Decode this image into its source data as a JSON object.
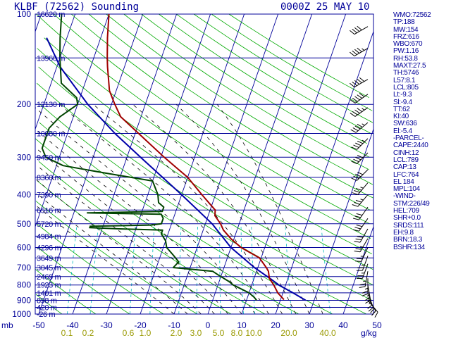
{
  "title": {
    "left": "KLBF (72562) Sounding",
    "right": "0000Z 25 MAY 10"
  },
  "colors": {
    "axes": "#000099",
    "temperature": "#a00000",
    "dewpoint": "#004400",
    "parcel": "#0000aa",
    "dry_adiabats": "#00aa00",
    "moist_adiabats": "#000000",
    "mixing_ratio": "#00bbbb",
    "isotherms": "#000099"
  },
  "chart_data": {
    "type": "skew-t",
    "title": "KLBF (72562) Sounding",
    "x_axis_label": "mb",
    "pressure_ticks": [
      100,
      200,
      300,
      400,
      500,
      600,
      700,
      800,
      900,
      1000
    ],
    "temperature_ticks": [
      -50,
      -40,
      -30,
      -20,
      -10,
      0,
      10,
      20,
      30,
      40,
      50
    ],
    "mixing_ratio_labels": [
      "0.1",
      "0.2",
      "0.6",
      "1.0",
      "2.0",
      "3.0",
      "5.0",
      "8.0",
      "10.0",
      "20.0",
      "40.0"
    ],
    "mixing_ratio_unit": "g/kg",
    "heights": [
      {
        "label": "16620 m",
        "p": 100
      },
      {
        "label": "13960 m",
        "p": 140
      },
      {
        "label": "12130 m",
        "p": 200
      },
      {
        "label": "10680 m",
        "p": 250
      },
      {
        "label": "9450 m",
        "p": 300
      },
      {
        "label": "8360 m",
        "p": 350
      },
      {
        "label": "7390 m",
        "p": 400
      },
      {
        "label": "6516 m",
        "p": 450
      },
      {
        "label": "5720 m",
        "p": 500
      },
      {
        "label": "4984 m",
        "p": 550
      },
      {
        "label": "4296 m",
        "p": 600
      },
      {
        "label": "3649 m",
        "p": 650
      },
      {
        "label": "3045 m",
        "p": 700
      },
      {
        "label": "2469 m",
        "p": 750
      },
      {
        "label": "1923 m",
        "p": 800
      },
      {
        "label": "1401 m",
        "p": 850
      },
      {
        "label": "898 m",
        "p": 900
      },
      {
        "label": "420 m",
        "p": 950
      },
      {
        "label": "-26 m",
        "p": 1000
      }
    ],
    "temperature": [
      [
        895,
        21
      ],
      [
        850,
        18.5
      ],
      [
        800,
        16.5
      ],
      [
        760,
        14.5
      ],
      [
        720,
        13.5
      ],
      [
        700,
        12.5
      ],
      [
        650,
        9.5
      ],
      [
        600,
        3
      ],
      [
        560,
        -1
      ],
      [
        525,
        -4
      ],
      [
        500,
        -5.5
      ],
      [
        470,
        -8
      ],
      [
        450,
        -8.5
      ],
      [
        400,
        -14
      ],
      [
        350,
        -20
      ],
      [
        300,
        -29
      ],
      [
        250,
        -39
      ],
      [
        220,
        -46
      ],
      [
        200,
        -49
      ],
      [
        180,
        -52
      ],
      [
        150,
        -55
      ],
      [
        140,
        -56
      ],
      [
        120,
        -58
      ],
      [
        100,
        -60
      ]
    ],
    "dewpoint": [
      [
        900,
        13
      ],
      [
        880,
        12
      ],
      [
        850,
        10
      ],
      [
        800,
        4.5
      ],
      [
        780,
        3
      ],
      [
        740,
        -1
      ],
      [
        720,
        -3
      ],
      [
        700,
        -15
      ],
      [
        670,
        -14
      ],
      [
        640,
        -16
      ],
      [
        600,
        -19
      ],
      [
        570,
        -20
      ],
      [
        540,
        -22
      ],
      [
        525,
        -22
      ],
      [
        520,
        -35
      ],
      [
        515,
        -44
      ],
      [
        512,
        -70
      ],
      [
        510,
        -44
      ],
      [
        505,
        -26
      ],
      [
        500,
        -23
      ],
      [
        480,
        -23
      ],
      [
        465,
        -24
      ],
      [
        460,
        -46
      ],
      [
        455,
        -24
      ],
      [
        440,
        -24
      ],
      [
        425,
        -26
      ],
      [
        400,
        -27
      ],
      [
        360,
        -30
      ],
      [
        340,
        -44
      ],
      [
        320,
        -58
      ],
      [
        300,
        -64
      ],
      [
        280,
        -66
      ],
      [
        260,
        -66
      ],
      [
        240,
        -66
      ],
      [
        220,
        -64
      ],
      [
        200,
        -60
      ],
      [
        190,
        -61
      ],
      [
        170,
        -67
      ],
      [
        140,
        -70
      ],
      [
        120,
        -72
      ],
      [
        100,
        -74
      ]
    ],
    "parcel": [
      [
        900,
        27.5
      ],
      [
        850,
        23
      ],
      [
        800,
        18
      ],
      [
        764,
        15
      ],
      [
        700,
        9
      ],
      [
        600,
        0
      ],
      [
        500,
        -8
      ],
      [
        400,
        -20
      ],
      [
        300,
        -36
      ],
      [
        250,
        -46
      ],
      [
        200,
        -57
      ],
      [
        150,
        -69
      ],
      [
        120,
        -76
      ],
      [
        100,
        -82
      ]
    ],
    "wind_barbs": [
      {
        "p": 110,
        "dir": 240,
        "kt": 40
      },
      {
        "p": 130,
        "dir": 240,
        "kt": 45
      },
      {
        "p": 165,
        "dir": 240,
        "kt": 50
      },
      {
        "p": 185,
        "dir": 235,
        "kt": 50
      },
      {
        "p": 205,
        "dir": 235,
        "kt": 45
      },
      {
        "p": 230,
        "dir": 230,
        "kt": 45
      },
      {
        "p": 260,
        "dir": 225,
        "kt": 45
      },
      {
        "p": 290,
        "dir": 225,
        "kt": 40
      },
      {
        "p": 330,
        "dir": 225,
        "kt": 40
      },
      {
        "p": 365,
        "dir": 220,
        "kt": 35
      },
      {
        "p": 400,
        "dir": 220,
        "kt": 35
      },
      {
        "p": 440,
        "dir": 215,
        "kt": 30
      },
      {
        "p": 480,
        "dir": 215,
        "kt": 30
      },
      {
        "p": 520,
        "dir": 210,
        "kt": 30
      },
      {
        "p": 560,
        "dir": 210,
        "kt": 25
      },
      {
        "p": 600,
        "dir": 205,
        "kt": 25
      },
      {
        "p": 640,
        "dir": 200,
        "kt": 25
      },
      {
        "p": 680,
        "dir": 200,
        "kt": 25
      },
      {
        "p": 720,
        "dir": 190,
        "kt": 25
      },
      {
        "p": 760,
        "dir": 180,
        "kt": 25
      },
      {
        "p": 800,
        "dir": 170,
        "kt": 25
      },
      {
        "p": 850,
        "dir": 160,
        "kt": 25
      },
      {
        "p": 880,
        "dir": 150,
        "kt": 20
      },
      {
        "p": 900,
        "dir": 140,
        "kt": 15
      }
    ]
  },
  "indices": [
    "WMO:72562",
    "TP:188",
    "MW:154",
    "FRZ:616",
    "WBO:670",
    "PW:1.16",
    "RH:53.8",
    "MAXT:27.5",
    "TH:5746",
    "L57:8.1",
    "LCL:805",
    "Lt:-9.3",
    "Sl:-9.4",
    "TT:62",
    "KI:40",
    "SW:636",
    "El:-5.4",
    "-PARCEL-",
    "CAPE:2440",
    "CINH:12",
    "LCL:789",
    "CAP:13",
    "LFC:764",
    "EL 184",
    "MPL:104",
    "-WIND-",
    "STM:226/49",
    "HEL:709",
    "SHR+0.0",
    "SRDS:111",
    "EH:9.8",
    "BRN:18.3",
    "BSHR:134"
  ]
}
